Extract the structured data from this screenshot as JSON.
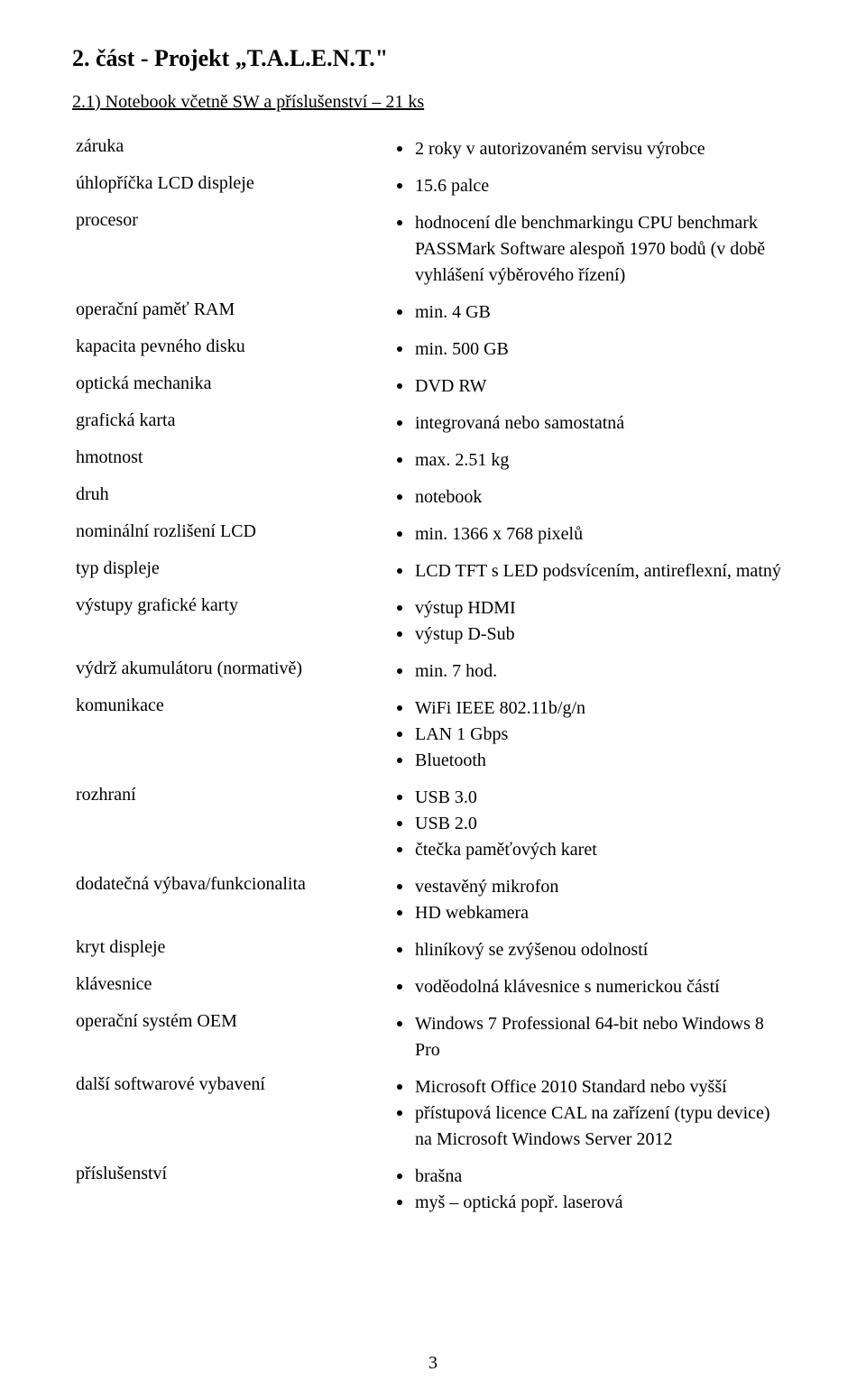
{
  "page": {
    "number": "3",
    "h1": "2. část - Projekt „T.A.L.E.N.T.\"",
    "h2": "2.1) Notebook včetně SW a příslušenství – 21 ks"
  },
  "rows": [
    {
      "label": "záruka",
      "items": [
        "2 roky v autorizovaném servisu výrobce"
      ]
    },
    {
      "label": "úhlopříčka LCD displeje",
      "items": [
        "15.6 palce"
      ]
    },
    {
      "label": "procesor",
      "items": [
        "hodnocení dle benchmarkingu CPU benchmark PASSMark Software alespoň 1970 bodů (v době vyhlášení výběrového řízení)"
      ]
    },
    {
      "label": "operační paměť RAM",
      "items": [
        "min. 4 GB"
      ]
    },
    {
      "label": "kapacita pevného disku",
      "items": [
        "min. 500 GB"
      ]
    },
    {
      "label": "optická mechanika",
      "items": [
        "DVD RW"
      ]
    },
    {
      "label": "grafická karta",
      "items": [
        "integrovaná nebo samostatná"
      ]
    },
    {
      "label": "hmotnost",
      "items": [
        "max. 2.51 kg"
      ]
    },
    {
      "label": "druh",
      "items": [
        "notebook"
      ]
    },
    {
      "label": "nominální rozlišení LCD",
      "items": [
        "min. 1366 x 768 pixelů"
      ]
    },
    {
      "label": "typ displeje",
      "items": [
        "LCD TFT s LED podsvícením, antireflexní, matný"
      ]
    },
    {
      "label": "výstupy grafické karty",
      "items": [
        "výstup HDMI",
        "výstup D-Sub"
      ]
    },
    {
      "label": "výdrž akumulátoru (normativě)",
      "items": [
        "min. 7 hod."
      ]
    },
    {
      "label": "komunikace",
      "items": [
        "WiFi IEEE 802.11b/g/n",
        "LAN 1 Gbps",
        "Bluetooth"
      ]
    },
    {
      "label": "rozhraní",
      "items": [
        "USB 3.0",
        "USB 2.0",
        "čtečka paměťových karet"
      ]
    },
    {
      "label": "dodatečná výbava/funkcionalita",
      "items": [
        "vestavěný mikrofon",
        "HD webkamera"
      ]
    },
    {
      "label": "kryt displeje",
      "items": [
        "hliníkový se zvýšenou odolností"
      ]
    },
    {
      "label": "klávesnice",
      "items": [
        "voděodolná klávesnice s numerickou částí"
      ]
    },
    {
      "label": "operační systém OEM",
      "items": [
        "Windows 7 Professional 64-bit nebo Windows 8 Pro"
      ]
    },
    {
      "label": "další softwarové vybavení",
      "items": [
        "Microsoft Office 2010 Standard nebo vyšší",
        "přístupová licence CAL na zařízení (typu device) na Microsoft Windows Server 2012"
      ]
    },
    {
      "label": "příslušenství",
      "items": [
        "brašna",
        "myš – optická popř. laserová"
      ]
    }
  ]
}
